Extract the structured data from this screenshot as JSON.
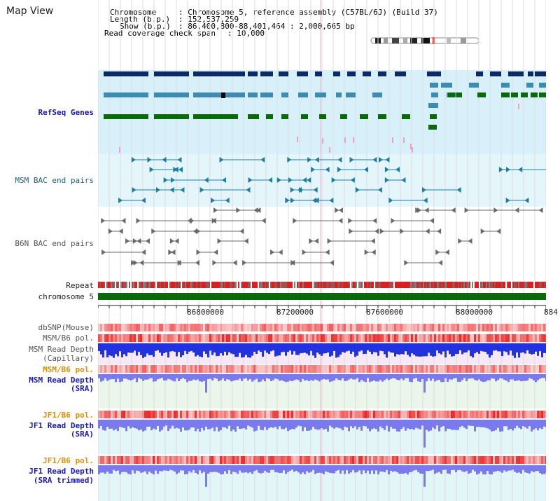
{
  "title": "Map View",
  "header": {
    "chromosome_key": "Chromosome",
    "chromosome_val": ": Chromosome 5, reference assembly (C57BL/6J) (Build 37)",
    "length_key": "Length (b.p.)",
    "length_val": ": 152,537,259",
    "show_key": "Show (b.p.)",
    "show_val": ": 86,400,800-88,401,464 : 2,000,665 bp",
    "coverage_key": "Read coverage check span",
    "coverage_val": ": 10,000"
  },
  "tracks": {
    "refseq": "RefSeq Genes",
    "msm_bac": "MSM BAC end pairs",
    "b6n_bac": "B6N BAC end pairs",
    "repeat": "Repeat",
    "chromosome": "chromosome 5",
    "dbsnp": "dbSNP(Mouse)",
    "msm_b6_pol_1": "MSM/B6 pol.",
    "msm_read_depth_cap_1": "MSM Read Depth",
    "msm_read_depth_cap_2": "(Capillary)",
    "msm_b6_pol_2": "MSM/B6 pol.",
    "msm_read_depth_sra_1": "MSM Read Depth",
    "msm_read_depth_sra_2": "(SRA)",
    "jf1_b6_pol_1": "JF1/B6 pol.",
    "jf1_read_depth_sra_1": "JF1 Read Depth",
    "jf1_read_depth_sra_2": "(SRA)",
    "jf1_b6_pol_2": "JF1/B6 pol.",
    "jf1_read_depth_trim_1": "JF1 Read Depth",
    "jf1_read_depth_trim_2": "(SRA trimmed)"
  },
  "axis": {
    "ticks": [
      "86800000",
      "87200000",
      "87600000",
      "88000000",
      "884"
    ]
  },
  "colors": {
    "gene_navy": "#0b2a66",
    "gene_steel": "#3b8bb3",
    "gene_green": "#0a6a0a",
    "refseq_bg": "#d8f0fa",
    "msm_bg": "#e4f6fb",
    "chromosome_bar": "#0a6a0a",
    "depth_blue": "#2233dd",
    "depth_light": "#7a7aee"
  }
}
